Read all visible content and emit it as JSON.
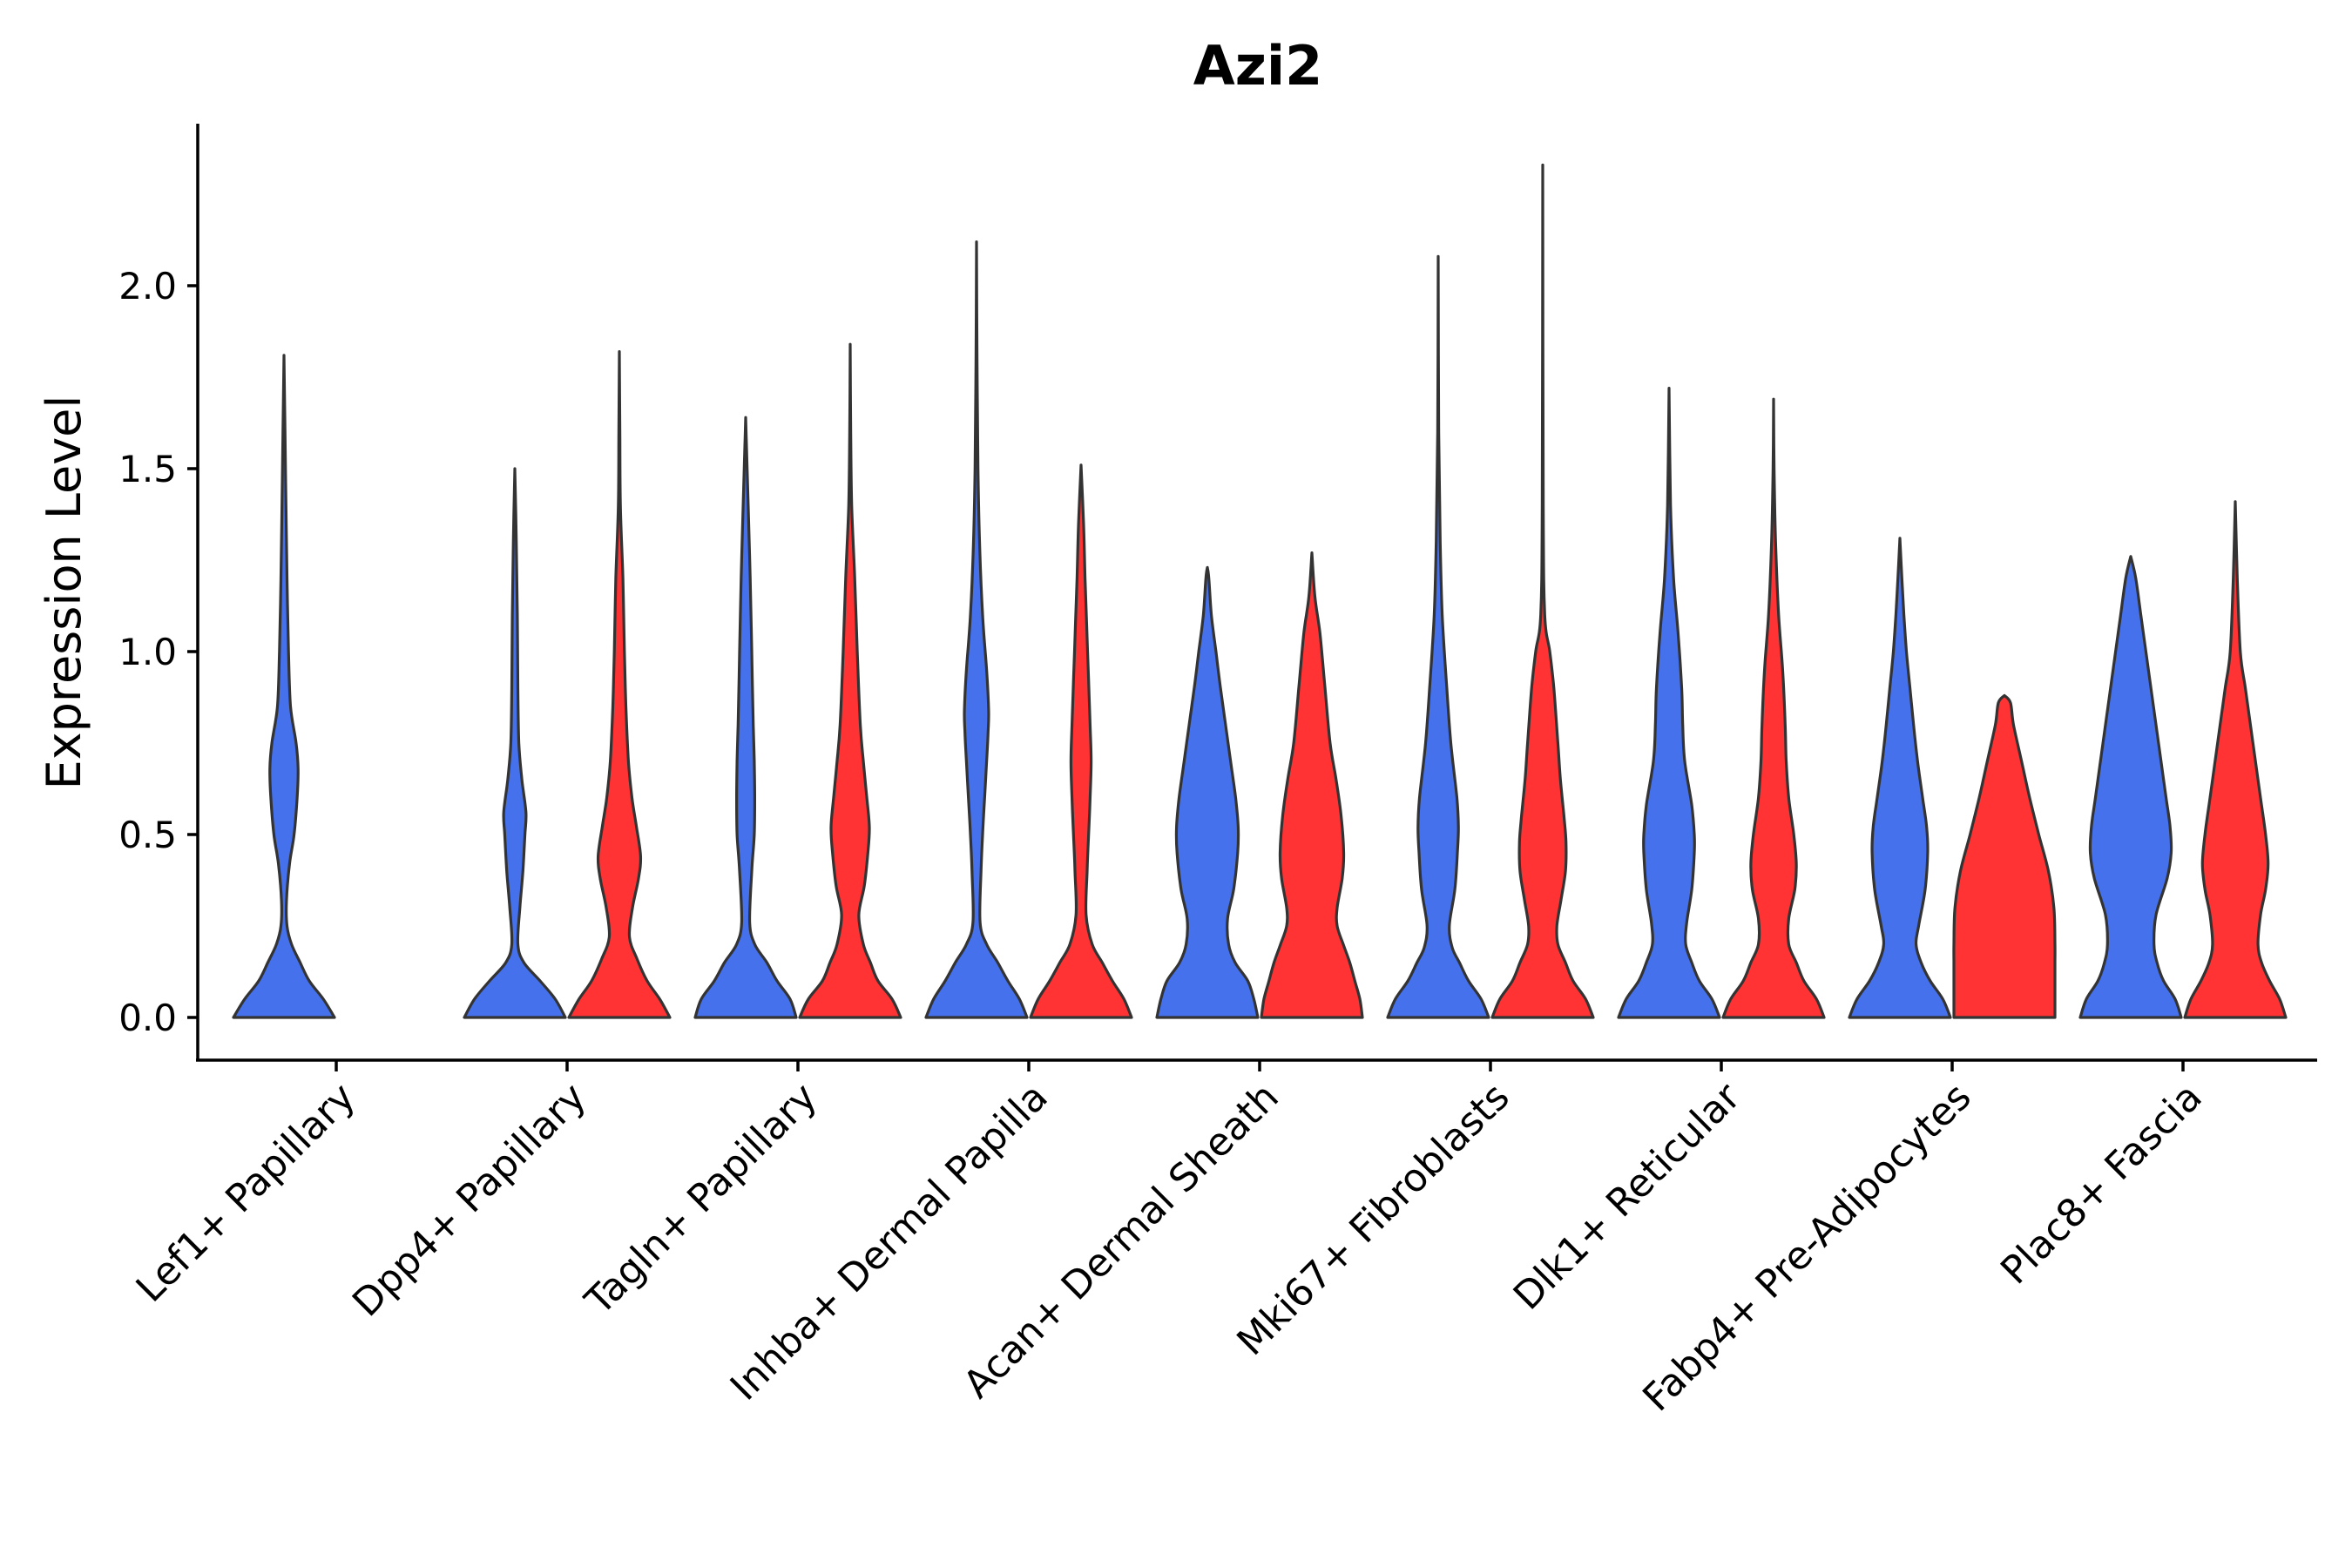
{
  "chart_data": {
    "type": "violin",
    "title": "Azi2",
    "xlabel": "",
    "ylabel": "Expression Level",
    "ylim": [
      -0.12,
      2.45
    ],
    "yticks": [
      0.0,
      0.5,
      1.0,
      1.5,
      2.0
    ],
    "ytick_labels": [
      "0.0",
      "0.5",
      "1.0",
      "1.5",
      "2.0"
    ],
    "grid": false,
    "legend": "none",
    "series": [
      {
        "name": "group1",
        "color": "#4571EC"
      },
      {
        "name": "group2",
        "color": "#FF3333"
      }
    ],
    "categories": [
      "Lef1+ Papillary",
      "Dpp4+ Papillary",
      "Tagln+ Papillary",
      "Inhba+ Dermal Papilla",
      "Acan+ Dermal Sheath",
      "Mki67+ Fibroblasts",
      "Dlk1+ Reticular",
      "Fabp4+ Pre-Adipocytes",
      "Plac8+ Fascia"
    ],
    "violins": [
      {
        "category": 0,
        "series": 0,
        "max": 1.81,
        "profile": [
          [
            0,
            1.0
          ],
          [
            0.05,
            0.78
          ],
          [
            0.1,
            0.5
          ],
          [
            0.15,
            0.32
          ],
          [
            0.2,
            0.15
          ],
          [
            0.25,
            0.06
          ],
          [
            0.32,
            0.05
          ],
          [
            0.42,
            0.11
          ],
          [
            0.5,
            0.2
          ],
          [
            0.6,
            0.26
          ],
          [
            0.68,
            0.28
          ],
          [
            0.75,
            0.24
          ],
          [
            0.85,
            0.13
          ],
          [
            1.0,
            0.09
          ],
          [
            1.2,
            0.06
          ],
          [
            1.4,
            0.04
          ],
          [
            1.6,
            0.02
          ],
          [
            1.81,
            0.0
          ]
        ]
      },
      {
        "category": 1,
        "series": 0,
        "max": 1.5,
        "profile": [
          [
            0,
            1.0
          ],
          [
            0.05,
            0.8
          ],
          [
            0.1,
            0.5
          ],
          [
            0.15,
            0.18
          ],
          [
            0.2,
            0.06
          ],
          [
            0.3,
            0.1
          ],
          [
            0.4,
            0.16
          ],
          [
            0.5,
            0.2
          ],
          [
            0.56,
            0.22
          ],
          [
            0.65,
            0.14
          ],
          [
            0.75,
            0.08
          ],
          [
            0.9,
            0.06
          ],
          [
            1.1,
            0.05
          ],
          [
            1.3,
            0.03
          ],
          [
            1.5,
            0.0
          ]
        ]
      },
      {
        "category": 1,
        "series": 1,
        "max": 1.82,
        "profile": [
          [
            0,
            1.0
          ],
          [
            0.05,
            0.8
          ],
          [
            0.1,
            0.55
          ],
          [
            0.16,
            0.35
          ],
          [
            0.22,
            0.2
          ],
          [
            0.3,
            0.26
          ],
          [
            0.38,
            0.38
          ],
          [
            0.44,
            0.42
          ],
          [
            0.52,
            0.34
          ],
          [
            0.6,
            0.25
          ],
          [
            0.7,
            0.18
          ],
          [
            0.85,
            0.13
          ],
          [
            1.0,
            0.1
          ],
          [
            1.2,
            0.07
          ],
          [
            1.4,
            0.02
          ],
          [
            1.6,
            0.01
          ],
          [
            1.82,
            0.0
          ]
        ]
      },
      {
        "category": 2,
        "series": 0,
        "max": 1.64,
        "profile": [
          [
            0,
            1.0
          ],
          [
            0.05,
            0.88
          ],
          [
            0.1,
            0.62
          ],
          [
            0.15,
            0.42
          ],
          [
            0.2,
            0.18
          ],
          [
            0.26,
            0.08
          ],
          [
            0.4,
            0.12
          ],
          [
            0.5,
            0.17
          ],
          [
            0.6,
            0.18
          ],
          [
            0.7,
            0.17
          ],
          [
            0.8,
            0.15
          ],
          [
            1.0,
            0.12
          ],
          [
            1.2,
            0.09
          ],
          [
            1.4,
            0.05
          ],
          [
            1.64,
            0.0
          ]
        ]
      },
      {
        "category": 2,
        "series": 1,
        "max": 1.84,
        "profile": [
          [
            0,
            1.0
          ],
          [
            0.05,
            0.83
          ],
          [
            0.1,
            0.55
          ],
          [
            0.15,
            0.4
          ],
          [
            0.2,
            0.26
          ],
          [
            0.28,
            0.17
          ],
          [
            0.36,
            0.28
          ],
          [
            0.45,
            0.35
          ],
          [
            0.52,
            0.38
          ],
          [
            0.6,
            0.33
          ],
          [
            0.7,
            0.26
          ],
          [
            0.8,
            0.2
          ],
          [
            1.0,
            0.14
          ],
          [
            1.2,
            0.09
          ],
          [
            1.4,
            0.03
          ],
          [
            1.6,
            0.01
          ],
          [
            1.84,
            0.0
          ]
        ]
      },
      {
        "category": 3,
        "series": 0,
        "max": 2.12,
        "profile": [
          [
            0,
            1.0
          ],
          [
            0.05,
            0.85
          ],
          [
            0.1,
            0.62
          ],
          [
            0.15,
            0.42
          ],
          [
            0.2,
            0.2
          ],
          [
            0.26,
            0.07
          ],
          [
            0.4,
            0.09
          ],
          [
            0.5,
            0.12
          ],
          [
            0.6,
            0.16
          ],
          [
            0.7,
            0.2
          ],
          [
            0.78,
            0.23
          ],
          [
            0.84,
            0.24
          ],
          [
            0.95,
            0.2
          ],
          [
            1.1,
            0.12
          ],
          [
            1.3,
            0.06
          ],
          [
            1.5,
            0.03
          ],
          [
            1.8,
            0.01
          ],
          [
            2.12,
            0.0
          ]
        ]
      },
      {
        "category": 3,
        "series": 1,
        "max": 1.51,
        "profile": [
          [
            0,
            1.0
          ],
          [
            0.05,
            0.85
          ],
          [
            0.1,
            0.62
          ],
          [
            0.15,
            0.42
          ],
          [
            0.2,
            0.22
          ],
          [
            0.28,
            0.1
          ],
          [
            0.4,
            0.12
          ],
          [
            0.5,
            0.15
          ],
          [
            0.6,
            0.18
          ],
          [
            0.7,
            0.2
          ],
          [
            0.8,
            0.18
          ],
          [
            1.0,
            0.13
          ],
          [
            1.2,
            0.08
          ],
          [
            1.35,
            0.05
          ],
          [
            1.51,
            0.0
          ]
        ]
      },
      {
        "category": 4,
        "series": 0,
        "max": 1.23,
        "profile": [
          [
            0,
            1.0
          ],
          [
            0.05,
            0.92
          ],
          [
            0.1,
            0.8
          ],
          [
            0.15,
            0.55
          ],
          [
            0.2,
            0.42
          ],
          [
            0.27,
            0.4
          ],
          [
            0.35,
            0.52
          ],
          [
            0.45,
            0.6
          ],
          [
            0.52,
            0.61
          ],
          [
            0.6,
            0.56
          ],
          [
            0.7,
            0.46
          ],
          [
            0.8,
            0.36
          ],
          [
            0.9,
            0.26
          ],
          [
            1.0,
            0.17
          ],
          [
            1.1,
            0.08
          ],
          [
            1.2,
            0.03
          ],
          [
            1.23,
            0.0
          ]
        ]
      },
      {
        "category": 4,
        "series": 1,
        "max": 1.27,
        "profile": [
          [
            0,
            1.0
          ],
          [
            0.05,
            0.95
          ],
          [
            0.1,
            0.85
          ],
          [
            0.15,
            0.75
          ],
          [
            0.2,
            0.62
          ],
          [
            0.25,
            0.5
          ],
          [
            0.3,
            0.5
          ],
          [
            0.38,
            0.6
          ],
          [
            0.45,
            0.63
          ],
          [
            0.55,
            0.58
          ],
          [
            0.65,
            0.48
          ],
          [
            0.75,
            0.36
          ],
          [
            0.9,
            0.26
          ],
          [
            1.05,
            0.16
          ],
          [
            1.15,
            0.06
          ],
          [
            1.27,
            0.0
          ]
        ]
      },
      {
        "category": 5,
        "series": 0,
        "max": 2.08,
        "profile": [
          [
            0,
            1.0
          ],
          [
            0.05,
            0.85
          ],
          [
            0.1,
            0.6
          ],
          [
            0.15,
            0.42
          ],
          [
            0.19,
            0.28
          ],
          [
            0.25,
            0.22
          ],
          [
            0.35,
            0.33
          ],
          [
            0.45,
            0.38
          ],
          [
            0.52,
            0.4
          ],
          [
            0.6,
            0.37
          ],
          [
            0.75,
            0.25
          ],
          [
            0.9,
            0.17
          ],
          [
            1.1,
            0.08
          ],
          [
            1.3,
            0.04
          ],
          [
            1.6,
            0.01
          ],
          [
            2.08,
            0.0
          ]
        ]
      },
      {
        "category": 5,
        "series": 1,
        "max": 2.33,
        "profile": [
          [
            0,
            1.0
          ],
          [
            0.05,
            0.85
          ],
          [
            0.1,
            0.6
          ],
          [
            0.15,
            0.45
          ],
          [
            0.2,
            0.3
          ],
          [
            0.25,
            0.28
          ],
          [
            0.32,
            0.36
          ],
          [
            0.4,
            0.45
          ],
          [
            0.48,
            0.46
          ],
          [
            0.55,
            0.42
          ],
          [
            0.65,
            0.35
          ],
          [
            0.75,
            0.3
          ],
          [
            0.9,
            0.22
          ],
          [
            1.0,
            0.14
          ],
          [
            1.1,
            0.04
          ],
          [
            1.4,
            0.01
          ],
          [
            2.33,
            0.0
          ]
        ]
      },
      {
        "category": 6,
        "series": 0,
        "max": 1.72,
        "profile": [
          [
            0,
            1.0
          ],
          [
            0.05,
            0.85
          ],
          [
            0.1,
            0.6
          ],
          [
            0.15,
            0.45
          ],
          [
            0.2,
            0.33
          ],
          [
            0.26,
            0.35
          ],
          [
            0.35,
            0.45
          ],
          [
            0.45,
            0.5
          ],
          [
            0.5,
            0.5
          ],
          [
            0.58,
            0.45
          ],
          [
            0.7,
            0.31
          ],
          [
            0.8,
            0.27
          ],
          [
            0.9,
            0.25
          ],
          [
            1.05,
            0.18
          ],
          [
            1.2,
            0.09
          ],
          [
            1.4,
            0.03
          ],
          [
            1.72,
            0.0
          ]
        ]
      },
      {
        "category": 6,
        "series": 1,
        "max": 1.69,
        "profile": [
          [
            0,
            1.0
          ],
          [
            0.05,
            0.85
          ],
          [
            0.1,
            0.6
          ],
          [
            0.15,
            0.45
          ],
          [
            0.2,
            0.3
          ],
          [
            0.27,
            0.3
          ],
          [
            0.35,
            0.42
          ],
          [
            0.42,
            0.45
          ],
          [
            0.5,
            0.4
          ],
          [
            0.6,
            0.3
          ],
          [
            0.7,
            0.25
          ],
          [
            0.8,
            0.23
          ],
          [
            0.95,
            0.18
          ],
          [
            1.1,
            0.1
          ],
          [
            1.3,
            0.04
          ],
          [
            1.5,
            0.01
          ],
          [
            1.69,
            0.0
          ]
        ]
      },
      {
        "category": 7,
        "series": 0,
        "max": 1.31,
        "profile": [
          [
            0,
            1.0
          ],
          [
            0.05,
            0.85
          ],
          [
            0.1,
            0.6
          ],
          [
            0.15,
            0.42
          ],
          [
            0.2,
            0.32
          ],
          [
            0.25,
            0.37
          ],
          [
            0.35,
            0.5
          ],
          [
            0.45,
            0.55
          ],
          [
            0.52,
            0.53
          ],
          [
            0.6,
            0.45
          ],
          [
            0.7,
            0.35
          ],
          [
            0.8,
            0.27
          ],
          [
            0.9,
            0.2
          ],
          [
            1.0,
            0.13
          ],
          [
            1.1,
            0.08
          ],
          [
            1.2,
            0.04
          ],
          [
            1.31,
            0.0
          ]
        ]
      },
      {
        "category": 7,
        "series": 1,
        "max": 0.88,
        "profile": [
          [
            0,
            1.0
          ],
          [
            0.05,
            1.0
          ],
          [
            0.1,
            1.0
          ],
          [
            0.15,
            1.0
          ],
          [
            0.2,
            1.0
          ],
          [
            0.3,
            0.98
          ],
          [
            0.4,
            0.87
          ],
          [
            0.5,
            0.68
          ],
          [
            0.6,
            0.5
          ],
          [
            0.7,
            0.34
          ],
          [
            0.8,
            0.18
          ],
          [
            0.86,
            0.12
          ],
          [
            0.88,
            0.0
          ]
        ]
      },
      {
        "category": 8,
        "series": 0,
        "max": 1.26,
        "profile": [
          [
            0,
            1.0
          ],
          [
            0.05,
            0.88
          ],
          [
            0.1,
            0.65
          ],
          [
            0.15,
            0.52
          ],
          [
            0.2,
            0.46
          ],
          [
            0.28,
            0.5
          ],
          [
            0.38,
            0.72
          ],
          [
            0.45,
            0.8
          ],
          [
            0.52,
            0.78
          ],
          [
            0.6,
            0.7
          ],
          [
            0.7,
            0.6
          ],
          [
            0.8,
            0.5
          ],
          [
            0.9,
            0.4
          ],
          [
            1.0,
            0.3
          ],
          [
            1.1,
            0.2
          ],
          [
            1.2,
            0.1
          ],
          [
            1.26,
            0.0
          ]
        ]
      },
      {
        "category": 8,
        "series": 1,
        "max": 1.41,
        "profile": [
          [
            0,
            1.0
          ],
          [
            0.05,
            0.88
          ],
          [
            0.1,
            0.68
          ],
          [
            0.15,
            0.52
          ],
          [
            0.2,
            0.45
          ],
          [
            0.28,
            0.5
          ],
          [
            0.35,
            0.6
          ],
          [
            0.42,
            0.65
          ],
          [
            0.5,
            0.6
          ],
          [
            0.6,
            0.5
          ],
          [
            0.7,
            0.4
          ],
          [
            0.8,
            0.3
          ],
          [
            0.9,
            0.2
          ],
          [
            1.0,
            0.1
          ],
          [
            1.2,
            0.04
          ],
          [
            1.41,
            0.0
          ]
        ]
      }
    ]
  }
}
